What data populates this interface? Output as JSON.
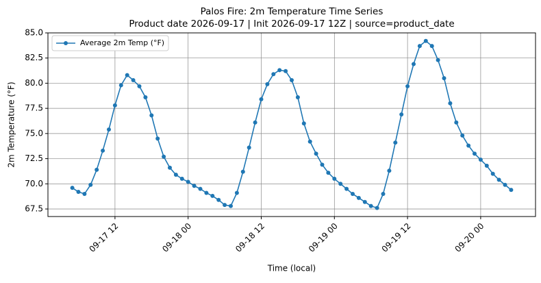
{
  "chart_data": {
    "type": "line",
    "title": "Palos Fire: 2m Temperature Time Series",
    "subtitle": "Product date 2026-09-17 | Init 2026-09-17 12Z | source=product_date",
    "x_label": "Time (local)",
    "y_label": "2m Temperature (°F)",
    "x": [
      "09-17 05",
      "09-17 06",
      "09-17 07",
      "09-17 08",
      "09-17 09",
      "09-17 10",
      "09-17 11",
      "09-17 12",
      "09-17 13",
      "09-17 14",
      "09-17 15",
      "09-17 16",
      "09-17 17",
      "09-17 18",
      "09-17 19",
      "09-17 20",
      "09-17 21",
      "09-17 22",
      "09-17 23",
      "09-18 00",
      "09-18 01",
      "09-18 02",
      "09-18 03",
      "09-18 04",
      "09-18 05",
      "09-18 06",
      "09-18 07",
      "09-18 08",
      "09-18 09",
      "09-18 10",
      "09-18 11",
      "09-18 12",
      "09-18 13",
      "09-18 14",
      "09-18 15",
      "09-18 16",
      "09-18 17",
      "09-18 18",
      "09-18 19",
      "09-18 20",
      "09-18 21",
      "09-18 22",
      "09-18 23",
      "09-19 00",
      "09-19 01",
      "09-19 02",
      "09-19 03",
      "09-19 04",
      "09-19 05",
      "09-19 06",
      "09-19 07",
      "09-19 08",
      "09-19 09",
      "09-19 10",
      "09-19 11",
      "09-19 12",
      "09-19 13",
      "09-19 14",
      "09-19 15",
      "09-19 16",
      "09-19 17",
      "09-19 18",
      "09-19 19",
      "09-19 20",
      "09-19 21",
      "09-19 22",
      "09-19 23",
      "09-20 00",
      "09-20 01",
      "09-20 02",
      "09-20 03",
      "09-20 04",
      "09-20 05"
    ],
    "series": [
      {
        "name": "Average 2m Temp (°F)",
        "color": "#1f77b4",
        "values": [
          69.6,
          69.2,
          69.0,
          69.9,
          71.4,
          73.3,
          75.4,
          77.8,
          79.8,
          80.8,
          80.3,
          79.7,
          78.6,
          76.8,
          74.5,
          72.7,
          71.6,
          70.9,
          70.5,
          70.2,
          69.8,
          69.5,
          69.1,
          68.8,
          68.4,
          67.9,
          67.8,
          69.1,
          71.2,
          73.6,
          76.1,
          78.4,
          79.9,
          80.9,
          81.3,
          81.2,
          80.3,
          78.6,
          76.0,
          74.2,
          73.0,
          71.9,
          71.1,
          70.5,
          70.0,
          69.5,
          69.0,
          68.6,
          68.2,
          67.8,
          67.6,
          69.0,
          71.3,
          74.1,
          76.9,
          79.7,
          81.9,
          83.7,
          84.2,
          83.7,
          82.3,
          80.5,
          78.0,
          76.1,
          74.8,
          73.8,
          73.0,
          72.4,
          71.8,
          71.0,
          70.4,
          69.9,
          69.4
        ]
      }
    ],
    "xlim": [
      "09-17 01",
      "09-20 09"
    ],
    "xticks": [
      "09-17 12",
      "09-18 00",
      "09-18 12",
      "09-19 00",
      "09-19 12",
      "09-20 00"
    ],
    "ylim": [
      66.75,
      85
    ],
    "yticks": [
      {
        "value": 67.5,
        "label": "67.5"
      },
      {
        "value": 70,
        "label": "70.0"
      },
      {
        "value": 72.5,
        "label": "72.5"
      },
      {
        "value": 75,
        "label": "75.0"
      },
      {
        "value": 77.5,
        "label": "77.5"
      },
      {
        "value": 80,
        "label": "80.0"
      },
      {
        "value": 82.5,
        "label": "82.5"
      },
      {
        "value": 85,
        "label": "85.0"
      }
    ],
    "grid": true,
    "legend": "upper left"
  }
}
